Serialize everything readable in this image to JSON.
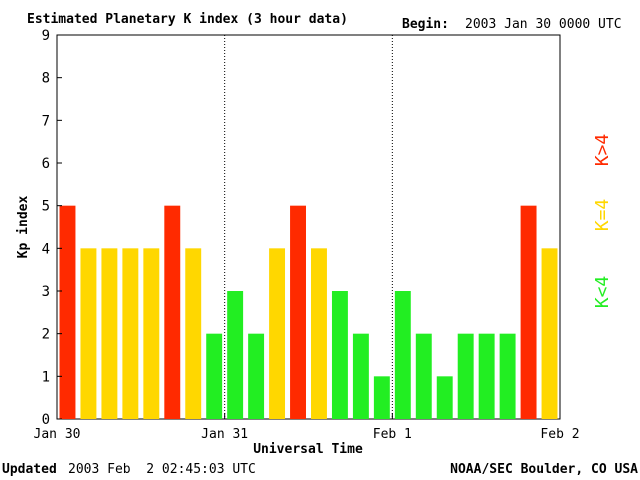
{
  "header": {
    "title": "Estimated Planetary K index (3 hour data)",
    "begin_label": "Begin:",
    "begin_value": "2003 Jan 30 0000 UTC"
  },
  "footer": {
    "updated_label": "Updated",
    "updated_value": "2003 Feb  2 02:45:03 UTC",
    "credit": "NOAA/SEC Boulder, CO USA"
  },
  "legend": {
    "high": "K>4",
    "mid": "K=4",
    "low": "K<4"
  },
  "colors": {
    "high": "#ff2a00",
    "mid": "#ffd700",
    "low": "#22ee22"
  },
  "chart_data": {
    "type": "bar",
    "title": "Estimated Planetary K index (3 hour data)",
    "xlabel": "Universal Time",
    "ylabel": "Kp index",
    "ylim": [
      0,
      9
    ],
    "yticks": [
      0,
      1,
      2,
      3,
      4,
      5,
      6,
      7,
      8,
      9
    ],
    "x_tick_labels": [
      "Jan 30",
      "Jan 31",
      "Feb 1",
      "Feb 2"
    ],
    "bar_interval_hours": 3,
    "day_separators": [
      "Jan 31",
      "Feb 1"
    ],
    "grid": false,
    "values": [
      5,
      4,
      4,
      4,
      4,
      5,
      4,
      2,
      3,
      2,
      4,
      5,
      4,
      3,
      2,
      1,
      3,
      2,
      1,
      2,
      2,
      2,
      5,
      4
    ]
  }
}
